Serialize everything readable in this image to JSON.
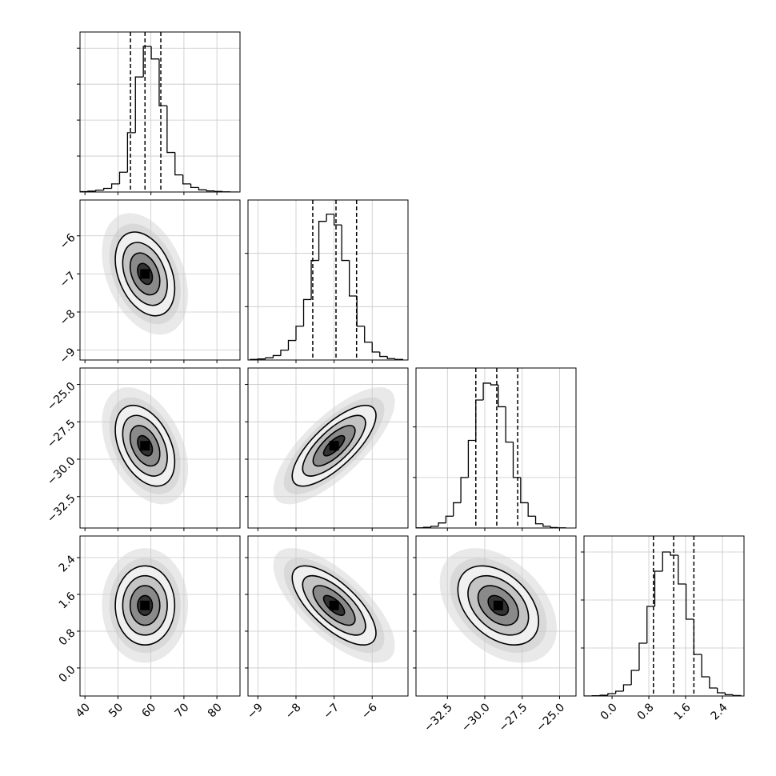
{
  "chart_data": {
    "type": "corner",
    "grid": true,
    "contour_levels": [
      0.5,
      1,
      1.5,
      2
    ],
    "parameters": [
      {
        "lim": [
          38.5,
          87
        ],
        "ticks": [
          40,
          50,
          60,
          70,
          80
        ],
        "bins": [
          38.5,
          40.9,
          43.3,
          45.7,
          48.1,
          50.5,
          52.9,
          55.3,
          57.7,
          60.1,
          62.5,
          64.9,
          67.3,
          69.7,
          72.1,
          74.5,
          76.9,
          79.3,
          81.7,
          84.1,
          86.5
        ],
        "counts": [
          2,
          5,
          10,
          20,
          45,
          110,
          330,
          640,
          810,
          740,
          480,
          220,
          95,
          45,
          25,
          12,
          6,
          3,
          1,
          0
        ],
        "hist_ylim": [
          0,
          890
        ],
        "hist_yticks": [
          200,
          400,
          600,
          800
        ],
        "quantiles": [
          53.8,
          58.2,
          63.0
        ],
        "mean": 58.2,
        "sd": 4.5
      },
      {
        "lim": [
          -9.26,
          -5.06
        ],
        "ticks": [
          {
            "value": -9,
            "label": "−9"
          },
          {
            "value": -8,
            "label": "−8"
          },
          {
            "value": -7,
            "label": "−7"
          },
          {
            "value": -6,
            "label": "−6"
          }
        ],
        "bins": [
          -9.2,
          -9.0,
          -8.8,
          -8.6,
          -8.4,
          -8.2,
          -8.0,
          -7.8,
          -7.6,
          -7.4,
          -7.2,
          -7.0,
          -6.8,
          -6.6,
          -6.4,
          -6.2,
          -6.0,
          -5.8,
          -5.6,
          -5.4,
          -5.2
        ],
        "counts": [
          3,
          6,
          12,
          25,
          55,
          110,
          190,
          340,
          560,
          780,
          820,
          760,
          560,
          360,
          190,
          100,
          45,
          20,
          8,
          3
        ],
        "hist_ylim": [
          0,
          900
        ],
        "hist_yticks": [
          300,
          600
        ],
        "quantiles": [
          -7.56,
          -6.95,
          -6.41
        ],
        "mean": -7.0,
        "sd": 0.55
      },
      {
        "lim": [
          -34.6,
          -23.9
        ],
        "ticks": [
          {
            "value": -32.5,
            "label": "−32.5"
          },
          {
            "value": -30,
            "label": "−30.0"
          },
          {
            "value": -27.5,
            "label": "−27.5"
          },
          {
            "value": -25,
            "label": "−25.0"
          }
        ],
        "bins": [
          -34.6,
          -34.1,
          -33.6,
          -33.1,
          -32.6,
          -32.1,
          -31.6,
          -31.1,
          -30.6,
          -30.1,
          -29.6,
          -29.1,
          -28.6,
          -28.1,
          -27.6,
          -27.1,
          -26.6,
          -26.1,
          -25.6,
          -25.1,
          -24.6
        ],
        "counts": [
          1,
          4,
          10,
          30,
          70,
          150,
          300,
          520,
          760,
          860,
          850,
          720,
          510,
          300,
          150,
          70,
          25,
          10,
          3,
          1
        ],
        "hist_ylim": [
          0,
          950
        ],
        "hist_yticks": [
          300,
          600
        ],
        "quantiles": [
          -30.6,
          -29.2,
          -27.8
        ],
        "mean": -29.1,
        "sd": 1.35
      },
      {
        "lim": [
          -0.61,
          2.87
        ],
        "ticks": [
          {
            "value": 0,
            "label": "0.0"
          },
          0.8,
          1.6,
          2.4
        ],
        "bins": [
          -0.6,
          -0.43,
          -0.26,
          -0.09,
          0.08,
          0.25,
          0.42,
          0.59,
          0.76,
          0.93,
          1.1,
          1.27,
          1.44,
          1.61,
          1.78,
          1.95,
          2.12,
          2.29,
          2.46,
          2.63,
          2.8
        ],
        "counts": [
          0,
          2,
          5,
          15,
          30,
          70,
          160,
          330,
          560,
          780,
          900,
          880,
          700,
          480,
          260,
          120,
          50,
          20,
          8,
          3
        ],
        "hist_ylim": [
          0,
          1000
        ],
        "hist_yticks": [
          300,
          600,
          900
        ],
        "quantiles": [
          0.9,
          1.34,
          1.78
        ],
        "mean": 1.36,
        "sd": 0.43
      }
    ],
    "correlations": [
      [
        -0.35
      ],
      [
        -0.4,
        0.75
      ],
      [
        0.0,
        -0.7,
        -0.4
      ]
    ]
  }
}
